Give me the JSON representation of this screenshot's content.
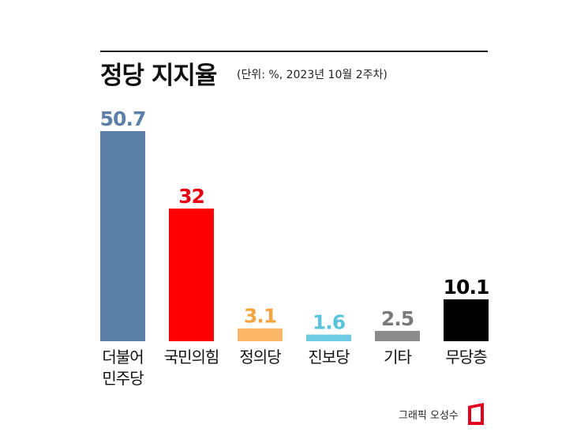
{
  "header": {
    "title": "정당 지지율",
    "subtitle": "(단위: %, 2023년 10월 2주차)"
  },
  "credit": {
    "text": "그래픽 오성수",
    "logo_color": "#e1001f"
  },
  "chart_data": {
    "type": "bar",
    "title": "정당 지지율",
    "subtitle": "(단위: %, 2023년 10월 2주차)",
    "unit": "%",
    "categories": [
      "더불어\n민주당",
      "국민의힘",
      "정의당",
      "진보당",
      "기타",
      "무당층"
    ],
    "values": [
      50.7,
      32,
      3.1,
      1.6,
      2.5,
      10.1
    ],
    "value_labels": [
      "50.7",
      "32",
      "3.1",
      "1.6",
      "2.5",
      "10.1"
    ],
    "bar_colors": [
      "#5b7fa6",
      "#ff0000",
      "#fbb668",
      "#6ccbe0",
      "#8b8b8b",
      "#000000"
    ],
    "label_colors": [
      "#5b7fa6",
      "#e60012",
      "#f6a440",
      "#5cc3dc",
      "#7a7a7a",
      "#000000"
    ],
    "ylim": [
      0,
      50.7
    ],
    "grid": false,
    "legend": "none"
  }
}
